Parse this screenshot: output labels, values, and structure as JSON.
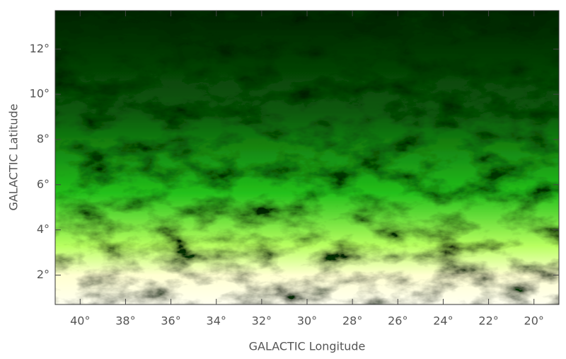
{
  "chart_data": {
    "type": "image",
    "xlabel": "GALACTIC Longitude",
    "ylabel": "GALACTIC Latitude",
    "xlim": [
      41.1,
      18.9
    ],
    "ylim": [
      0.7,
      13.7
    ],
    "xticks": [
      {
        "value": 40,
        "label": "40°"
      },
      {
        "value": 38,
        "label": "38°"
      },
      {
        "value": 36,
        "label": "36°"
      },
      {
        "value": 34,
        "label": "34°"
      },
      {
        "value": 32,
        "label": "32°"
      },
      {
        "value": 30,
        "label": "30°"
      },
      {
        "value": 28,
        "label": "28°"
      },
      {
        "value": 26,
        "label": "26°"
      },
      {
        "value": 24,
        "label": "24°"
      },
      {
        "value": 22,
        "label": "22°"
      },
      {
        "value": 20,
        "label": "20°"
      }
    ],
    "yticks": [
      {
        "value": 2,
        "label": "2°"
      },
      {
        "value": 4,
        "label": "4°"
      },
      {
        "value": 6,
        "label": "6°"
      },
      {
        "value": 8,
        "label": "8°"
      },
      {
        "value": 10,
        "label": "10°"
      },
      {
        "value": 12,
        "label": "12°"
      }
    ]
  }
}
